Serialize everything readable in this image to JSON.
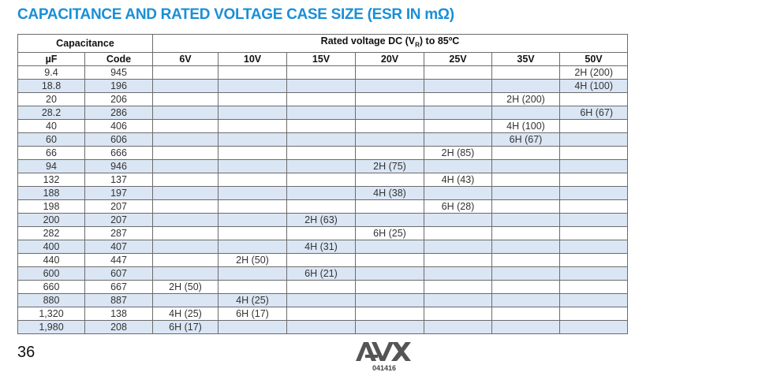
{
  "title": "CAPACITANCE AND RATED VOLTAGE CASE SIZE (ESR IN mΩ)",
  "header": {
    "capacitance": "Capacitance",
    "rated_prefix": "Rated voltage DC (V",
    "rated_sub": "R",
    "rated_suffix": ") to 85ºC",
    "uF": "µF",
    "code": "Code",
    "voltages": [
      "6V",
      "10V",
      "15V",
      "20V",
      "25V",
      "35V",
      "50V"
    ]
  },
  "rows": [
    {
      "uF": "9.4",
      "code": "945",
      "v": [
        "",
        "",
        "",
        "",
        "",
        "",
        "2H (200)"
      ]
    },
    {
      "uF": "18.8",
      "code": "196",
      "v": [
        "",
        "",
        "",
        "",
        "",
        "",
        "4H (100)"
      ]
    },
    {
      "uF": "20",
      "code": "206",
      "v": [
        "",
        "",
        "",
        "",
        "",
        "2H (200)",
        ""
      ]
    },
    {
      "uF": "28.2",
      "code": "286",
      "v": [
        "",
        "",
        "",
        "",
        "",
        "",
        "6H (67)"
      ]
    },
    {
      "uF": "40",
      "code": "406",
      "v": [
        "",
        "",
        "",
        "",
        "",
        "4H (100)",
        ""
      ]
    },
    {
      "uF": "60",
      "code": "606",
      "v": [
        "",
        "",
        "",
        "",
        "",
        "6H (67)",
        ""
      ]
    },
    {
      "uF": "66",
      "code": "666",
      "v": [
        "",
        "",
        "",
        "",
        "2H (85)",
        "",
        ""
      ]
    },
    {
      "uF": "94",
      "code": "946",
      "v": [
        "",
        "",
        "",
        "2H (75)",
        "",
        "",
        ""
      ]
    },
    {
      "uF": "132",
      "code": "137",
      "v": [
        "",
        "",
        "",
        "",
        "4H (43)",
        "",
        ""
      ]
    },
    {
      "uF": "188",
      "code": "197",
      "v": [
        "",
        "",
        "",
        "4H (38)",
        "",
        "",
        ""
      ]
    },
    {
      "uF": "198",
      "code": "207",
      "v": [
        "",
        "",
        "",
        "",
        "6H (28)",
        "",
        ""
      ]
    },
    {
      "uF": "200",
      "code": "207",
      "v": [
        "",
        "",
        "2H (63)",
        "",
        "",
        "",
        ""
      ]
    },
    {
      "uF": "282",
      "code": "287",
      "v": [
        "",
        "",
        "",
        "6H (25)",
        "",
        "",
        ""
      ]
    },
    {
      "uF": "400",
      "code": "407",
      "v": [
        "",
        "",
        "4H (31)",
        "",
        "",
        "",
        ""
      ]
    },
    {
      "uF": "440",
      "code": "447",
      "v": [
        "",
        "2H (50)",
        "",
        "",
        "",
        "",
        ""
      ]
    },
    {
      "uF": "600",
      "code": "607",
      "v": [
        "",
        "",
        "6H (21)",
        "",
        "",
        "",
        ""
      ]
    },
    {
      "uF": "660",
      "code": "667",
      "v": [
        "2H (50)",
        "",
        "",
        "",
        "",
        "",
        ""
      ]
    },
    {
      "uF": "880",
      "code": "887",
      "v": [
        "",
        "4H (25)",
        "",
        "",
        "",
        "",
        ""
      ]
    },
    {
      "uF": "1,320",
      "code": "138",
      "v": [
        "4H (25)",
        "6H (17)",
        "",
        "",
        "",
        "",
        ""
      ]
    },
    {
      "uF": "1,980",
      "code": "208",
      "v": [
        "6H (17)",
        "",
        "",
        "",
        "",
        "",
        ""
      ]
    }
  ],
  "footer": {
    "page_number": "36",
    "logo_text": "AVX",
    "logo_code": "041416"
  },
  "colors": {
    "title": "#1a8fd6",
    "row_shade": "#dbe6f4",
    "border": "#6b6b6b",
    "logo": "#555555"
  }
}
